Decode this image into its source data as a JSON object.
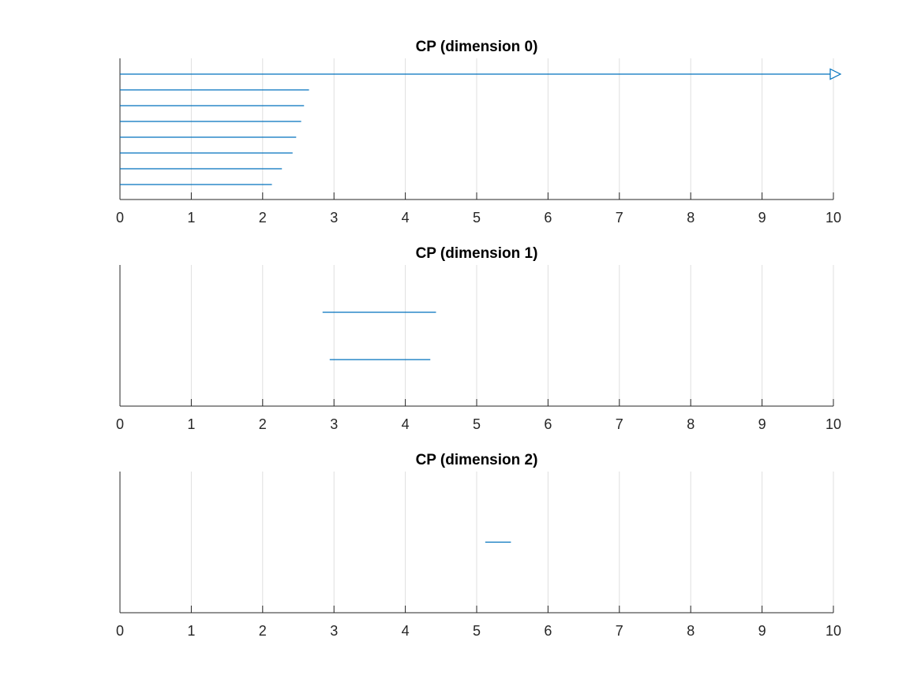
{
  "chart_data": [
    {
      "type": "barcode",
      "title": "CP (dimension 0)",
      "xlim": [
        0,
        10
      ],
      "xticks": [
        0,
        1,
        2,
        3,
        4,
        5,
        6,
        7,
        8,
        9,
        10
      ],
      "grid": "x",
      "color": "#0072BD",
      "bars": [
        {
          "birth": 0,
          "death": 10,
          "infinite": true
        },
        {
          "birth": 0,
          "death": 2.65
        },
        {
          "birth": 0,
          "death": 2.58
        },
        {
          "birth": 0,
          "death": 2.54
        },
        {
          "birth": 0,
          "death": 2.47
        },
        {
          "birth": 0,
          "death": 2.42
        },
        {
          "birth": 0,
          "death": 2.27
        },
        {
          "birth": 0,
          "death": 2.13
        }
      ]
    },
    {
      "type": "barcode",
      "title": "CP (dimension 1)",
      "xlim": [
        0,
        10
      ],
      "xticks": [
        0,
        1,
        2,
        3,
        4,
        5,
        6,
        7,
        8,
        9,
        10
      ],
      "grid": "x",
      "color": "#0072BD",
      "bars": [
        {
          "birth": 2.84,
          "death": 4.43
        },
        {
          "birth": 2.94,
          "death": 4.35
        }
      ]
    },
    {
      "type": "barcode",
      "title": "CP (dimension 2)",
      "xlim": [
        0,
        10
      ],
      "xticks": [
        0,
        1,
        2,
        3,
        4,
        5,
        6,
        7,
        8,
        9,
        10
      ],
      "grid": "x",
      "color": "#0072BD",
      "bars": [
        {
          "birth": 5.12,
          "death": 5.48
        }
      ]
    }
  ]
}
